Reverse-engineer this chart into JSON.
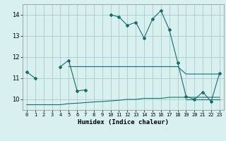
{
  "xlabel": "Humidex (Indice chaleur)",
  "x_values": [
    0,
    1,
    2,
    3,
    4,
    5,
    6,
    7,
    8,
    9,
    10,
    11,
    12,
    13,
    14,
    15,
    16,
    17,
    18,
    19,
    20,
    21,
    22,
    23
  ],
  "line1_y": [
    11.3,
    11.0,
    null,
    null,
    11.55,
    11.85,
    10.4,
    10.45,
    null,
    null,
    14.0,
    13.9,
    13.5,
    13.65,
    12.9,
    13.8,
    14.2,
    13.3,
    11.75,
    10.15,
    10.0,
    10.35,
    9.9,
    11.25
  ],
  "line2_y": [
    11.3,
    null,
    null,
    null,
    null,
    11.55,
    11.55,
    11.55,
    11.55,
    11.55,
    11.55,
    11.55,
    11.55,
    11.55,
    11.55,
    11.55,
    11.55,
    11.55,
    11.55,
    11.2,
    11.2,
    11.2,
    11.2,
    11.2
  ],
  "line3_y": [
    9.75,
    9.75,
    9.75,
    9.75,
    9.75,
    9.8,
    9.82,
    9.85,
    9.88,
    9.9,
    9.93,
    9.96,
    10.0,
    10.0,
    10.05,
    10.05,
    10.05,
    10.1,
    10.1,
    10.1,
    10.1,
    10.1,
    10.1,
    10.1
  ],
  "line4_y": [
    9.75,
    null,
    null,
    null,
    null,
    null,
    null,
    null,
    null,
    null,
    null,
    null,
    null,
    null,
    null,
    null,
    null,
    null,
    null,
    10.0,
    10.0,
    10.0,
    10.0,
    10.0
  ],
  "line_color": "#1a6b6b",
  "bg_color": "#d8f0f0",
  "grid_color": "#aacccc",
  "ylim": [
    9.5,
    14.5
  ],
  "yticks": [
    10,
    11,
    12,
    13,
    14
  ],
  "xlim": [
    -0.5,
    23.5
  ],
  "xtick_labels": [
    "0",
    "1",
    "2",
    "3",
    "4",
    "5",
    "6",
    "7",
    "8",
    "9",
    "10",
    "11",
    "12",
    "13",
    "14",
    "15",
    "16",
    "17",
    "18",
    "19",
    "20",
    "21",
    "22",
    "23"
  ]
}
